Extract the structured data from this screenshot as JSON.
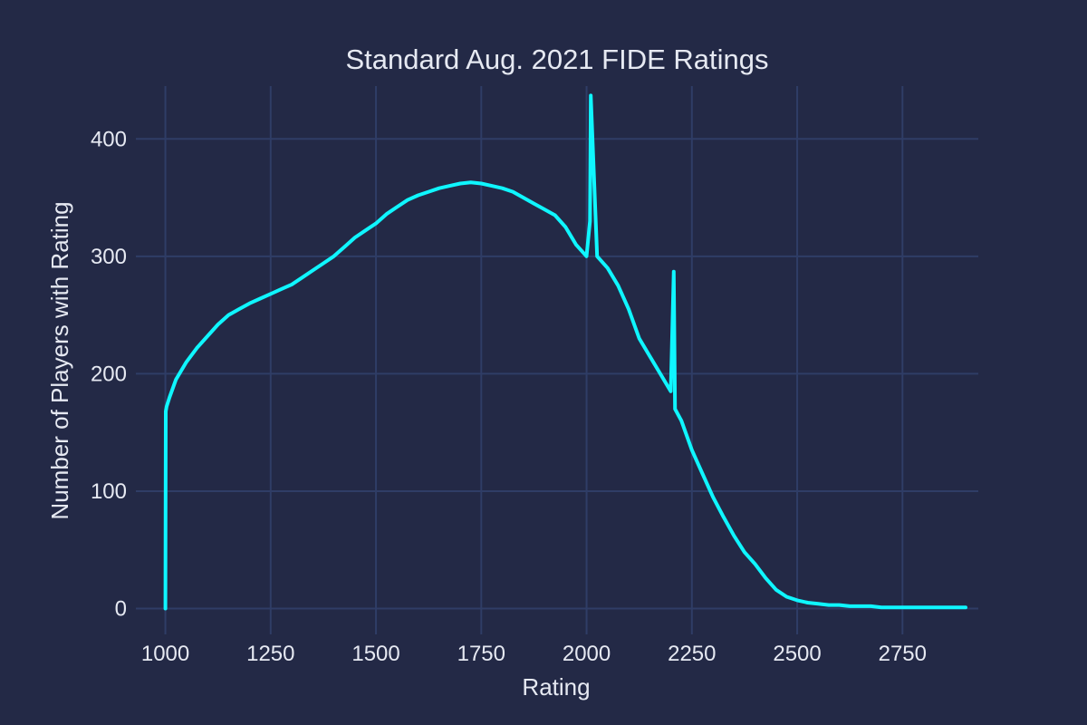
{
  "chart_data": {
    "type": "line",
    "title": "Standard Aug. 2021 FIDE Ratings",
    "xlabel": "Rating",
    "ylabel": "Number of Players with Rating",
    "xlim": [
      930,
      2930
    ],
    "ylim": [
      -22,
      445
    ],
    "x_ticks": [
      1000,
      1250,
      1500,
      1750,
      2000,
      2250,
      2500,
      2750
    ],
    "y_ticks": [
      0,
      100,
      200,
      300,
      400
    ],
    "grid": true,
    "legend": "none",
    "colors": {
      "background": "#232946",
      "line": "#0ff6ff",
      "grid": "#2f3d66",
      "text": "#e6e9f2"
    },
    "series": [
      {
        "x": [
          1000,
          1001,
          1003,
          1010,
          1025,
          1050,
          1075,
          1100,
          1125,
          1150,
          1175,
          1200,
          1225,
          1250,
          1275,
          1300,
          1325,
          1350,
          1375,
          1400,
          1425,
          1450,
          1475,
          1500,
          1525,
          1550,
          1575,
          1600,
          1625,
          1650,
          1675,
          1700,
          1725,
          1750,
          1775,
          1800,
          1825,
          1850,
          1875,
          1900,
          1925,
          1950,
          1975,
          2000,
          2008,
          2010,
          2025,
          2050,
          2075,
          2100,
          2125,
          2150,
          2175,
          2200,
          2207,
          2210,
          2225,
          2250,
          2275,
          2300,
          2325,
          2350,
          2375,
          2400,
          2425,
          2450,
          2475,
          2500,
          2525,
          2550,
          2575,
          2600,
          2625,
          2650,
          2675,
          2700,
          2750,
          2800,
          2850,
          2900
        ],
        "y": [
          0,
          168,
          172,
          180,
          195,
          210,
          222,
          232,
          242,
          250,
          255,
          260,
          264,
          268,
          272,
          276,
          282,
          288,
          294,
          300,
          308,
          316,
          322,
          328,
          336,
          342,
          348,
          352,
          355,
          358,
          360,
          362,
          363,
          362,
          360,
          358,
          355,
          350,
          345,
          340,
          335,
          325,
          310,
          300,
          330,
          437,
          300,
          290,
          275,
          255,
          230,
          215,
          200,
          185,
          287,
          170,
          160,
          135,
          115,
          95,
          78,
          62,
          48,
          38,
          26,
          16,
          10,
          7,
          5,
          4,
          3,
          3,
          2,
          2,
          2,
          1,
          1,
          1,
          1,
          1
        ]
      }
    ]
  }
}
